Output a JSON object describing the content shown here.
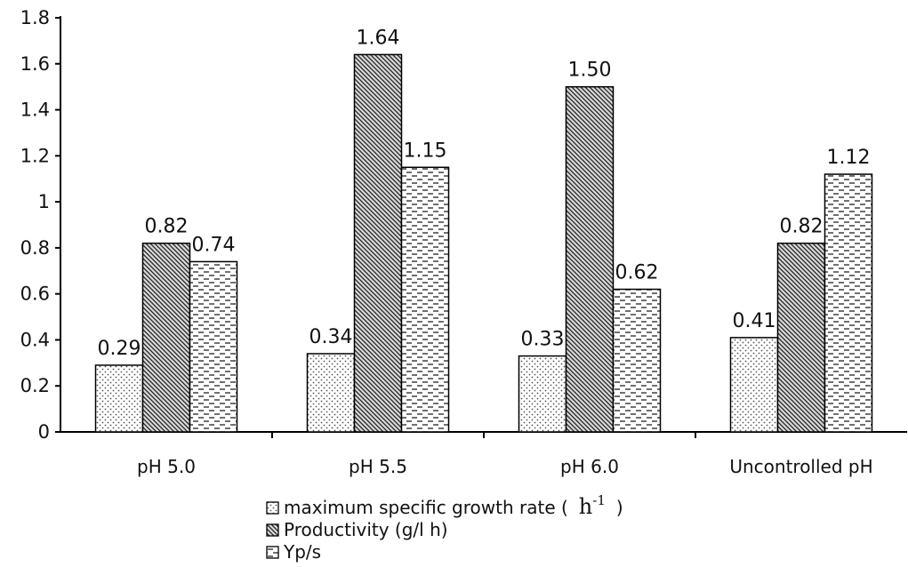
{
  "chart_data": {
    "type": "bar",
    "categories": [
      "pH 5.0",
      "pH 5.5",
      "pH 6.0",
      "Uncontrolled pH"
    ],
    "series": [
      {
        "name": "maximum specific growth rate (",
        "unit": "h",
        "unit_sup": "-1",
        "name_suffix": ")",
        "pattern": "dots",
        "values": [
          0.29,
          0.34,
          0.33,
          0.41
        ]
      },
      {
        "name": "Productivity (g/l h)",
        "pattern": "diagonal",
        "values": [
          0.82,
          1.64,
          1.5,
          0.82
        ]
      },
      {
        "name": "Yp/s",
        "pattern": "dashes",
        "values": [
          0.74,
          1.15,
          0.62,
          1.12
        ]
      }
    ],
    "data_labels": [
      [
        "0.29",
        "0.34",
        "0.33",
        "0.41"
      ],
      [
        "0.82",
        "1.64",
        "1.50",
        "0.82"
      ],
      [
        "0.74",
        "1.15",
        "0.62",
        "1.12"
      ]
    ],
    "ylim": [
      0,
      1.8
    ],
    "yticks": [
      "0",
      "0.2",
      "0.4",
      "0.6",
      "0.8",
      "1",
      "1.2",
      "1.4",
      "1.6",
      "1.8"
    ],
    "grid": false,
    "legend_position": "bottom-center"
  }
}
